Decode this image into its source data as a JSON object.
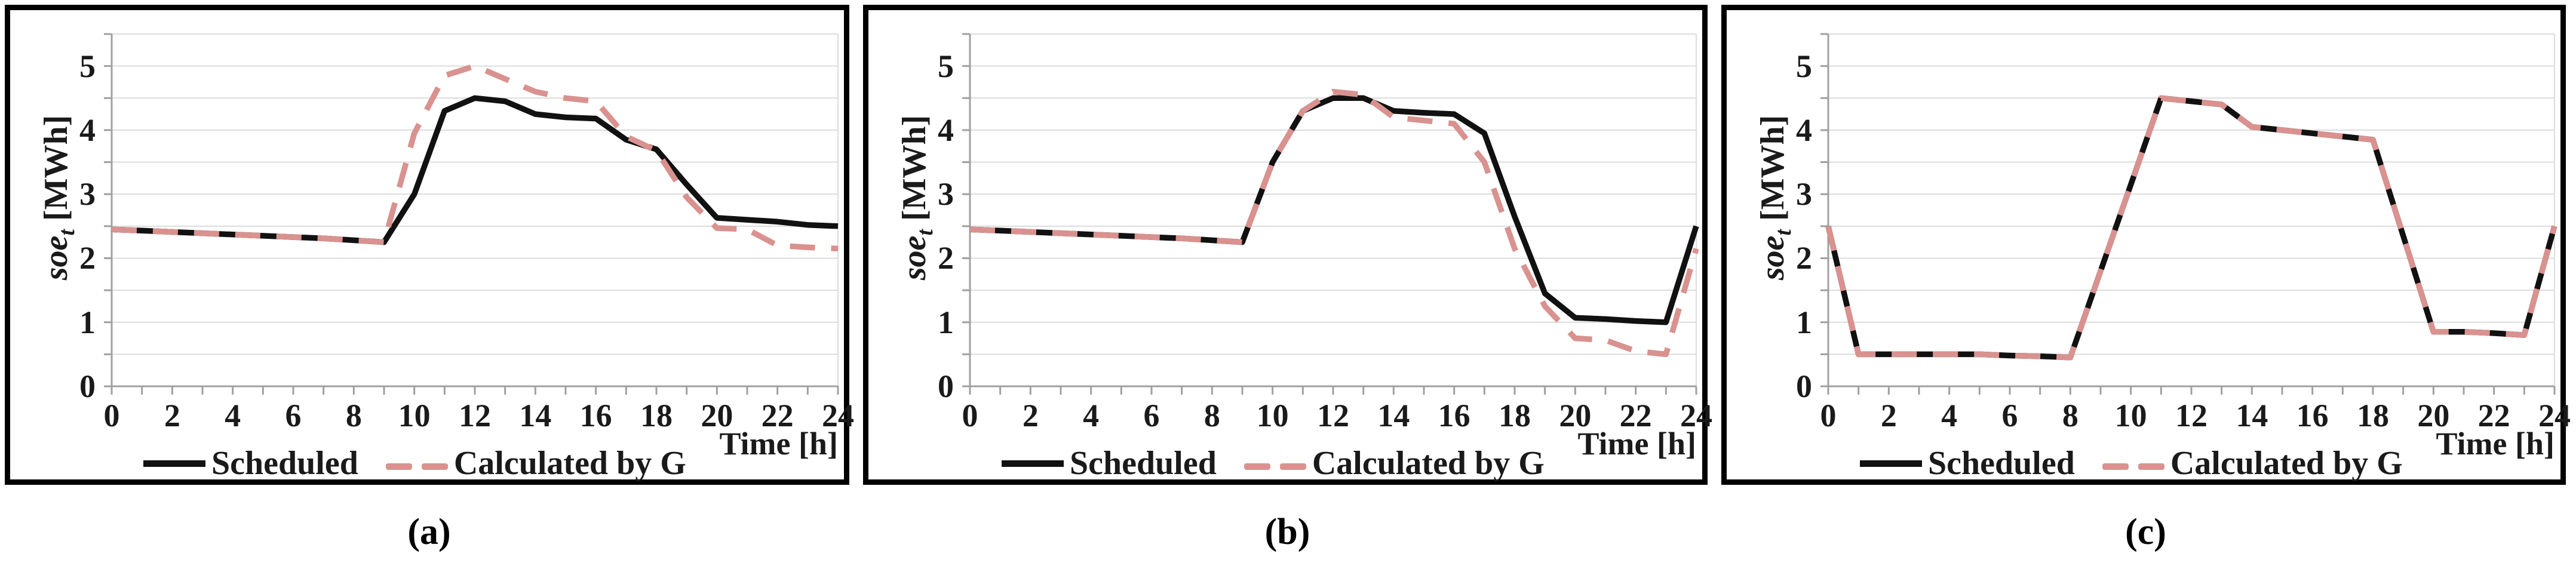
{
  "figure": {
    "background": "#ffffff",
    "description": "Three battery state-of-energy line charts"
  },
  "legend": {
    "scheduled": "Scheduled",
    "calculated": "Calculated by G"
  },
  "axes": {
    "y_title": {
      "italic": "soe",
      "sub": "t",
      "unit": " [MWh]"
    },
    "x_title": "Time [h]",
    "y_ticks": [
      0,
      1,
      2,
      3,
      4,
      5
    ],
    "x_ticks": [
      0,
      2,
      4,
      6,
      8,
      10,
      12,
      14,
      16,
      18,
      20,
      22,
      24
    ],
    "y_range": [
      0,
      5.5
    ],
    "x_range": [
      0,
      24
    ],
    "gridline_step": 0.5
  },
  "colors": {
    "scheduled": "#111111",
    "calculated": "#d9928f",
    "gridline": "#dcdcdc",
    "axis": "#a0a0a0",
    "frame": "#000000"
  },
  "charts": [
    {
      "caption": "(a)",
      "chart_data": {
        "type": "line",
        "title": "",
        "xlabel": "Time [h]",
        "ylabel": "soe_t [MWh]",
        "ylim": [
          0,
          5.5
        ],
        "xlim": [
          0,
          24
        ],
        "grid": true,
        "legend_position": "bottom",
        "x": [
          0,
          1,
          2,
          3,
          4,
          5,
          6,
          7,
          8,
          9,
          10,
          11,
          12,
          13,
          14,
          15,
          16,
          17,
          18,
          19,
          20,
          21,
          22,
          23,
          24
        ],
        "series": [
          {
            "name": "Scheduled",
            "style": "solid",
            "color": "#111111",
            "values": [
              2.45,
              2.43,
              2.41,
              2.39,
              2.37,
              2.35,
              2.33,
              2.31,
              2.28,
              2.25,
              3.0,
              4.3,
              4.5,
              4.45,
              4.25,
              4.2,
              4.18,
              3.85,
              3.7,
              3.15,
              2.63,
              2.6,
              2.57,
              2.52,
              2.5
            ]
          },
          {
            "name": "Calculated by G",
            "style": "dashed",
            "color": "#d9928f",
            "values": [
              2.45,
              2.43,
              2.41,
              2.39,
              2.37,
              2.35,
              2.33,
              2.31,
              2.28,
              2.25,
              3.95,
              4.85,
              5.0,
              4.8,
              4.6,
              4.5,
              4.45,
              3.9,
              3.68,
              2.95,
              2.47,
              2.45,
              2.2,
              2.17,
              2.15
            ]
          }
        ]
      }
    },
    {
      "caption": "(b)",
      "chart_data": {
        "type": "line",
        "title": "",
        "xlabel": "Time [h]",
        "ylabel": "soe_t [MWh]",
        "ylim": [
          0,
          5.5
        ],
        "xlim": [
          0,
          24
        ],
        "grid": true,
        "legend_position": "bottom",
        "x": [
          0,
          1,
          2,
          3,
          4,
          5,
          6,
          7,
          8,
          9,
          10,
          11,
          12,
          13,
          14,
          15,
          16,
          17,
          18,
          19,
          20,
          21,
          22,
          23,
          24
        ],
        "series": [
          {
            "name": "Scheduled",
            "style": "solid",
            "color": "#111111",
            "values": [
              2.45,
              2.43,
              2.41,
              2.39,
              2.37,
              2.35,
              2.33,
              2.31,
              2.28,
              2.25,
              3.5,
              4.3,
              4.5,
              4.5,
              4.3,
              4.27,
              4.25,
              3.95,
              2.65,
              1.45,
              1.07,
              1.05,
              1.02,
              1.0,
              2.5
            ]
          },
          {
            "name": "Calculated by G",
            "style": "dashed",
            "color": "#d9928f",
            "values": [
              2.45,
              2.43,
              2.41,
              2.39,
              2.37,
              2.35,
              2.33,
              2.31,
              2.28,
              2.25,
              3.5,
              4.3,
              4.6,
              4.55,
              4.2,
              4.15,
              4.1,
              3.5,
              2.15,
              1.25,
              0.75,
              0.72,
              0.55,
              0.5,
              2.15
            ]
          }
        ]
      }
    },
    {
      "caption": "(c)",
      "chart_data": {
        "type": "line",
        "title": "",
        "xlabel": "Time [h]",
        "ylabel": "soe_t [MWh]",
        "ylim": [
          0,
          5.5
        ],
        "xlim": [
          0,
          24
        ],
        "grid": true,
        "legend_position": "bottom",
        "x": [
          0,
          1,
          2,
          3,
          4,
          5,
          6,
          7,
          8,
          9,
          10,
          11,
          12,
          13,
          14,
          15,
          16,
          17,
          18,
          19,
          20,
          21,
          22,
          23,
          24
        ],
        "series": [
          {
            "name": "Scheduled",
            "style": "solid",
            "color": "#111111",
            "values": [
              2.5,
              0.5,
              0.5,
              0.5,
              0.5,
              0.5,
              0.48,
              0.47,
              0.45,
              1.8,
              3.15,
              4.5,
              4.45,
              4.4,
              4.05,
              4.0,
              3.95,
              3.9,
              3.85,
              2.35,
              0.85,
              0.85,
              0.83,
              0.8,
              2.5
            ]
          },
          {
            "name": "Calculated by G",
            "style": "dashed",
            "color": "#d9928f",
            "values": [
              2.5,
              0.5,
              0.5,
              0.5,
              0.5,
              0.5,
              0.48,
              0.47,
              0.45,
              1.8,
              3.15,
              4.5,
              4.45,
              4.4,
              4.05,
              4.0,
              3.95,
              3.9,
              3.85,
              2.35,
              0.85,
              0.85,
              0.83,
              0.8,
              2.5
            ]
          }
        ]
      }
    }
  ]
}
